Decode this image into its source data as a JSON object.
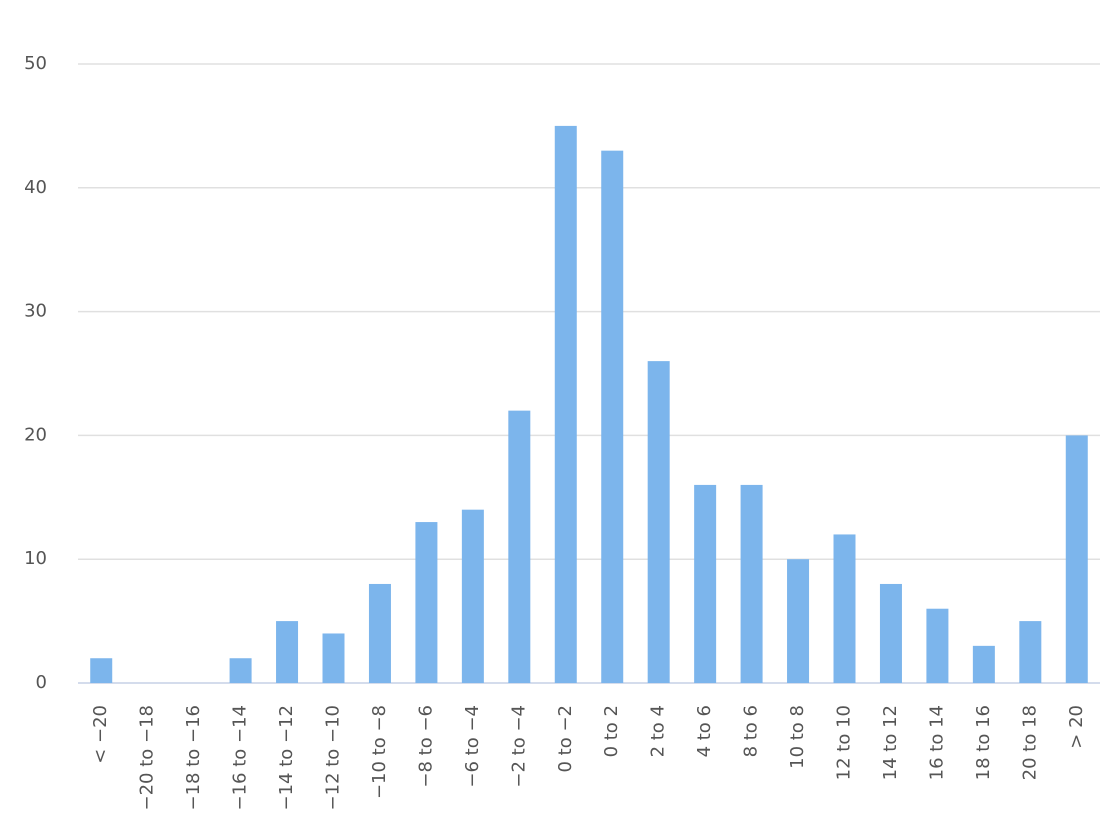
{
  "chart_data": {
    "type": "bar",
    "categories": [
      "< −20",
      "−20 to −18",
      "−18 to −16",
      "−16 to −14",
      "−14 to −12",
      "−12 to −10",
      "−10 to −8",
      "−8 to −6",
      "−6 to −4",
      "−2 to −4",
      "0 to −2",
      "0 to 2",
      "2 to 4",
      "4 to 6",
      "8 to 6",
      "10 to 8",
      "12 to 10",
      "14 to 12",
      "16 to 14",
      "18 to 16",
      "20 to 18",
      "> 20"
    ],
    "values": [
      2,
      0,
      0,
      2,
      5,
      4,
      8,
      13,
      14,
      22,
      45,
      43,
      26,
      16,
      16,
      10,
      12,
      8,
      6,
      3,
      5,
      20
    ],
    "color": "#7cb5ec",
    "ylim": [
      0,
      50
    ],
    "yticks": [
      0,
      10,
      20,
      30,
      40,
      50
    ],
    "grid": true
  }
}
